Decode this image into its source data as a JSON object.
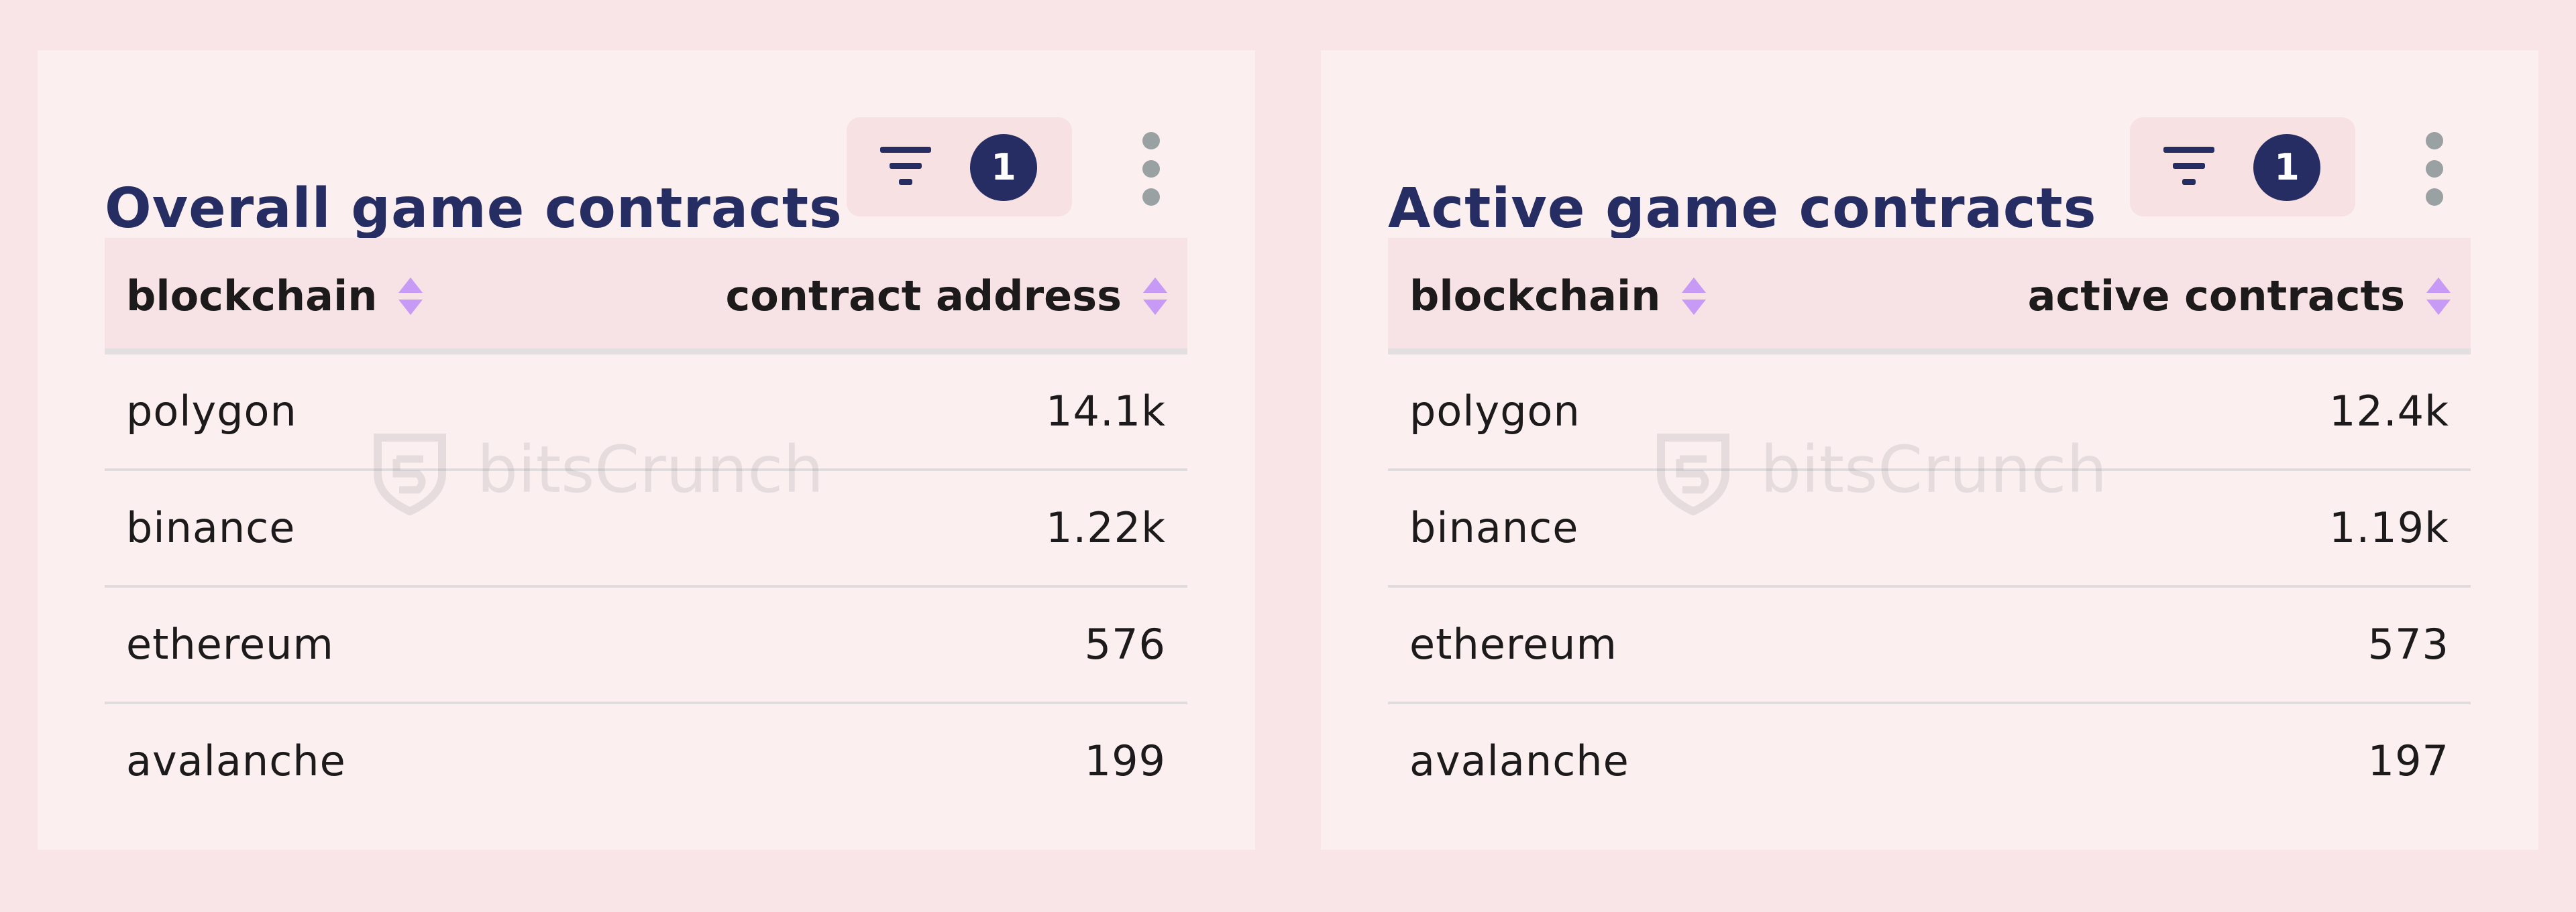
{
  "panels": [
    {
      "title": "Overall game contracts",
      "filter_count": "1",
      "columns": [
        "blockchain",
        "contract address"
      ],
      "rows": [
        [
          "polygon",
          "14.1k"
        ],
        [
          "binance",
          "1.22k"
        ],
        [
          "ethereum",
          "576"
        ],
        [
          "avalanche",
          "199"
        ]
      ],
      "watermark": "bitsCrunch"
    },
    {
      "title": "Active game contracts",
      "filter_count": "1",
      "columns": [
        "blockchain",
        "active contracts"
      ],
      "rows": [
        [
          "polygon",
          "12.4k"
        ],
        [
          "binance",
          "1.19k"
        ],
        [
          "ethereum",
          "573"
        ],
        [
          "avalanche",
          "197"
        ]
      ],
      "watermark": "bitsCrunch"
    }
  ],
  "icons": {
    "filter": "filter-icon",
    "sort": "sort-icon",
    "menu": "kebab-menu-icon",
    "watermark_logo": "bitscrunch-logo-icon"
  },
  "colors": {
    "page_background": "#f9e5e7",
    "panel_background": "#fbeff0",
    "title": "#262d63",
    "badge": "#262d63",
    "sort_arrow": "#c79af5",
    "header_background": "#f7e2e5"
  }
}
